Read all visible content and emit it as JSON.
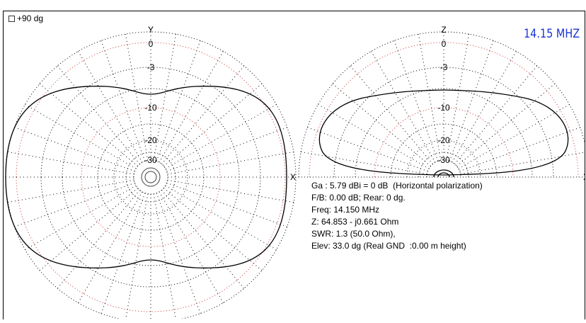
{
  "checkbox": {
    "label": "+90 dg"
  },
  "frequency": "14.15 MHZ",
  "horizontal_plot": {
    "axis_top": "Y",
    "axis_right": "X",
    "ring_labels": [
      "0",
      "-3",
      "-10",
      "-20",
      "-30"
    ]
  },
  "vertical_plot": {
    "axis_top": "Z",
    "axis_right": "X",
    "ring_labels": [
      "0",
      "-3",
      "-10",
      "-20",
      "-30"
    ]
  },
  "info": [
    "Ga : 5.79 dBi = 0 dB  (Horizontal polarization)",
    "F/B: 0.00 dB; Rear: 0 dg.",
    "Freq: 14.150 MHz",
    "Z: 64.853 - j0.661 Ohm",
    "SWR: 1.3 (50.0 Ohm),",
    "Elev: 33.0 dg (Real GND  :0.00 m height)"
  ]
}
